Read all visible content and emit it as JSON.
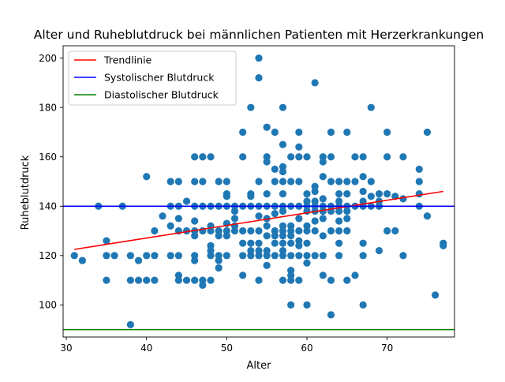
{
  "chart_data": {
    "type": "scatter",
    "title": "Alter und Ruheblutdruck bei männlichen Patienten mit Herzerkrankungen",
    "xlabel": "Alter",
    "ylabel": "Ruheblutdruck",
    "xlim": [
      29.6,
      78.4
    ],
    "ylim": [
      87,
      205
    ],
    "xticks": [
      30,
      40,
      50,
      60,
      70
    ],
    "yticks": [
      100,
      120,
      140,
      160,
      180,
      200
    ],
    "grid": false,
    "legend_position": "top-left",
    "point_color": "#1f77b4",
    "legend": [
      {
        "label": "Trendlinie",
        "color": "#ff0000"
      },
      {
        "label": "Systolischer Blutdruck",
        "color": "#0000ff"
      },
      {
        "label": "Diastolischer Blutdruck",
        "color": "#008000"
      }
    ],
    "trendline": {
      "name": "Trendlinie",
      "color": "#ff0000",
      "x": [
        31,
        77
      ],
      "y": [
        122.5,
        146
      ]
    },
    "reference_lines": [
      {
        "name": "Systolischer Blutdruck",
        "y": 140,
        "color": "#0000ff"
      },
      {
        "name": "Diastolischer Blutdruck",
        "y": 90,
        "color": "#008000"
      }
    ],
    "points": [
      [
        31,
        120
      ],
      [
        32,
        118
      ],
      [
        34,
        140
      ],
      [
        35,
        126
      ],
      [
        35,
        120
      ],
      [
        35,
        110
      ],
      [
        36,
        120
      ],
      [
        37,
        140
      ],
      [
        38,
        120
      ],
      [
        38,
        110
      ],
      [
        38,
        92
      ],
      [
        39,
        118
      ],
      [
        39,
        110
      ],
      [
        40,
        152
      ],
      [
        40,
        120
      ],
      [
        40,
        110
      ],
      [
        41,
        130
      ],
      [
        41,
        120
      ],
      [
        41,
        110
      ],
      [
        42,
        136
      ],
      [
        43,
        150
      ],
      [
        43,
        140
      ],
      [
        43,
        132
      ],
      [
        43,
        120
      ],
      [
        44,
        150
      ],
      [
        44,
        140
      ],
      [
        44,
        135
      ],
      [
        44,
        130
      ],
      [
        44,
        120
      ],
      [
        44,
        112
      ],
      [
        44,
        110
      ],
      [
        45,
        142
      ],
      [
        45,
        130
      ],
      [
        45,
        110
      ],
      [
        46,
        160
      ],
      [
        46,
        150
      ],
      [
        46,
        140
      ],
      [
        46,
        134
      ],
      [
        46,
        130
      ],
      [
        46,
        128
      ],
      [
        46,
        120
      ],
      [
        46,
        118
      ],
      [
        46,
        110
      ],
      [
        47,
        160
      ],
      [
        47,
        150
      ],
      [
        47,
        140
      ],
      [
        47,
        130
      ],
      [
        47,
        110
      ],
      [
        47,
        108
      ],
      [
        48,
        160
      ],
      [
        48,
        140
      ],
      [
        48,
        132
      ],
      [
        48,
        130
      ],
      [
        48,
        124
      ],
      [
        48,
        122
      ],
      [
        48,
        120
      ],
      [
        48,
        110
      ],
      [
        49,
        150
      ],
      [
        49,
        140
      ],
      [
        49,
        130
      ],
      [
        49,
        128
      ],
      [
        49,
        120
      ],
      [
        49,
        118
      ],
      [
        49,
        115
      ],
      [
        50,
        150
      ],
      [
        50,
        145
      ],
      [
        50,
        144
      ],
      [
        50,
        140
      ],
      [
        50,
        133
      ],
      [
        50,
        130
      ],
      [
        50,
        128
      ],
      [
        50,
        120
      ],
      [
        51,
        140
      ],
      [
        51,
        138
      ],
      [
        51,
        135
      ],
      [
        51,
        132
      ],
      [
        51,
        130
      ],
      [
        52,
        170
      ],
      [
        52,
        160
      ],
      [
        52,
        140
      ],
      [
        52,
        130
      ],
      [
        52,
        125
      ],
      [
        52,
        120
      ],
      [
        52,
        112
      ],
      [
        53,
        180
      ],
      [
        53,
        145
      ],
      [
        53,
        144
      ],
      [
        53,
        140
      ],
      [
        53,
        130
      ],
      [
        53,
        125
      ],
      [
        53,
        122
      ],
      [
        53,
        120
      ],
      [
        54,
        200
      ],
      [
        54,
        192
      ],
      [
        54,
        150
      ],
      [
        54,
        140
      ],
      [
        54,
        136
      ],
      [
        54,
        130
      ],
      [
        54,
        125
      ],
      [
        54,
        122
      ],
      [
        54,
        120
      ],
      [
        54,
        110
      ],
      [
        55,
        172
      ],
      [
        55,
        160
      ],
      [
        55,
        158
      ],
      [
        55,
        145
      ],
      [
        55,
        140
      ],
      [
        55,
        135
      ],
      [
        55,
        132
      ],
      [
        55,
        128
      ],
      [
        55,
        122
      ],
      [
        55,
        120
      ],
      [
        55,
        116
      ],
      [
        56,
        170
      ],
      [
        56,
        155
      ],
      [
        56,
        150
      ],
      [
        56,
        140
      ],
      [
        56,
        137
      ],
      [
        56,
        130
      ],
      [
        56,
        128
      ],
      [
        56,
        125
      ],
      [
        56,
        120
      ],
      [
        57,
        180
      ],
      [
        57,
        165
      ],
      [
        57,
        156
      ],
      [
        57,
        154
      ],
      [
        57,
        150
      ],
      [
        57,
        145
      ],
      [
        57,
        140
      ],
      [
        57,
        138
      ],
      [
        57,
        132
      ],
      [
        57,
        130
      ],
      [
        57,
        128
      ],
      [
        57,
        125
      ],
      [
        57,
        122
      ],
      [
        57,
        120
      ],
      [
        57,
        110
      ],
      [
        58,
        160
      ],
      [
        58,
        150
      ],
      [
        58,
        140
      ],
      [
        58,
        132
      ],
      [
        58,
        130
      ],
      [
        58,
        128
      ],
      [
        58,
        125
      ],
      [
        58,
        120
      ],
      [
        58,
        114
      ],
      [
        58,
        112
      ],
      [
        58,
        110
      ],
      [
        58,
        100
      ],
      [
        59,
        170
      ],
      [
        59,
        164
      ],
      [
        59,
        160
      ],
      [
        59,
        150
      ],
      [
        59,
        140
      ],
      [
        59,
        135
      ],
      [
        59,
        130
      ],
      [
        59,
        126
      ],
      [
        59,
        124
      ],
      [
        59,
        120
      ],
      [
        59,
        110
      ],
      [
        60,
        160
      ],
      [
        60,
        145
      ],
      [
        60,
        142
      ],
      [
        60,
        140
      ],
      [
        60,
        138
      ],
      [
        60,
        132
      ],
      [
        60,
        130
      ],
      [
        60,
        125
      ],
      [
        60,
        120
      ],
      [
        60,
        117
      ],
      [
        60,
        100
      ],
      [
        61,
        190
      ],
      [
        61,
        148
      ],
      [
        61,
        146
      ],
      [
        61,
        142
      ],
      [
        61,
        140
      ],
      [
        61,
        138
      ],
      [
        61,
        134
      ],
      [
        61,
        130
      ],
      [
        61,
        120
      ],
      [
        62,
        160
      ],
      [
        62,
        158
      ],
      [
        62,
        152
      ],
      [
        62,
        143
      ],
      [
        62,
        140
      ],
      [
        62,
        138
      ],
      [
        62,
        135
      ],
      [
        62,
        128
      ],
      [
        62,
        120
      ],
      [
        62,
        112
      ],
      [
        63,
        170
      ],
      [
        63,
        160
      ],
      [
        63,
        150
      ],
      [
        63,
        140
      ],
      [
        63,
        138
      ],
      [
        63,
        130
      ],
      [
        63,
        110
      ],
      [
        63,
        96
      ],
      [
        64,
        150
      ],
      [
        64,
        145
      ],
      [
        64,
        142
      ],
      [
        64,
        140
      ],
      [
        64,
        138
      ],
      [
        64,
        134
      ],
      [
        64,
        130
      ],
      [
        64,
        125
      ],
      [
        64,
        120
      ],
      [
        65,
        170
      ],
      [
        65,
        150
      ],
      [
        65,
        145
      ],
      [
        65,
        140
      ],
      [
        65,
        138
      ],
      [
        65,
        135
      ],
      [
        65,
        130
      ],
      [
        65,
        110
      ],
      [
        66,
        160
      ],
      [
        66,
        150
      ],
      [
        66,
        140
      ],
      [
        66,
        112
      ],
      [
        67,
        160
      ],
      [
        67,
        152
      ],
      [
        67,
        146
      ],
      [
        67,
        142
      ],
      [
        67,
        140
      ],
      [
        67,
        125
      ],
      [
        67,
        120
      ],
      [
        67,
        100
      ],
      [
        68,
        180
      ],
      [
        68,
        150
      ],
      [
        68,
        144
      ],
      [
        68,
        140
      ],
      [
        69,
        145
      ],
      [
        69,
        142
      ],
      [
        69,
        140
      ],
      [
        69,
        122
      ],
      [
        70,
        170
      ],
      [
        70,
        160
      ],
      [
        70,
        145
      ],
      [
        70,
        130
      ],
      [
        71,
        144
      ],
      [
        71,
        130
      ],
      [
        72,
        160
      ],
      [
        72,
        143
      ],
      [
        72,
        120
      ],
      [
        74,
        155
      ],
      [
        74,
        150
      ],
      [
        74,
        145
      ],
      [
        74,
        140
      ],
      [
        75,
        170
      ],
      [
        75,
        136
      ],
      [
        76,
        104
      ],
      [
        77,
        125
      ],
      [
        77,
        124
      ]
    ]
  }
}
